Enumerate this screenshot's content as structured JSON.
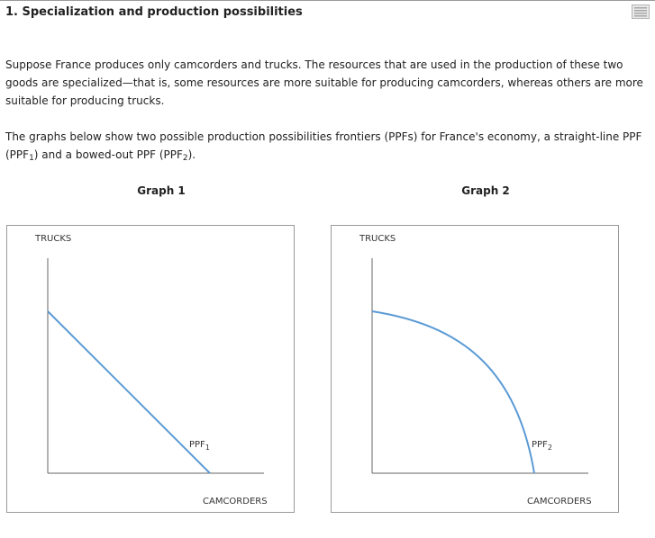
{
  "header": {
    "title": "1. Specialization and production possibilities",
    "notes_icon": "notes-list-icon"
  },
  "paragraph1": "Suppose France produces only camcorders and trucks. The resources that are used in the production of these two goods are specialized—that is, some resources are more suitable for producing camcorders, whereas others are more suitable for producing trucks.",
  "paragraph2": {
    "before": "The graphs below show two possible production possibilities frontiers (PPFs) for France's economy, a straight-line PPF (PPF",
    "sub1": "1",
    "middle": ") and a bowed-out PPF (PPF",
    "sub2": "2",
    "after": ")."
  },
  "graphs": [
    {
      "title": "Graph 1",
      "y_axis_label": "TRUCKS",
      "x_axis_label": "CAMCORDERS",
      "curve_label": "PPF",
      "curve_sub": "1",
      "shape": "straight-line"
    },
    {
      "title": "Graph 2",
      "y_axis_label": "TRUCKS",
      "x_axis_label": "CAMCORDERS",
      "curve_label": "PPF",
      "curve_sub": "2",
      "shape": "bowed-out"
    }
  ],
  "colors": {
    "curve": "#5b9bd5",
    "axis": "#666666",
    "border": "#9a9a9a",
    "text": "#222222"
  }
}
